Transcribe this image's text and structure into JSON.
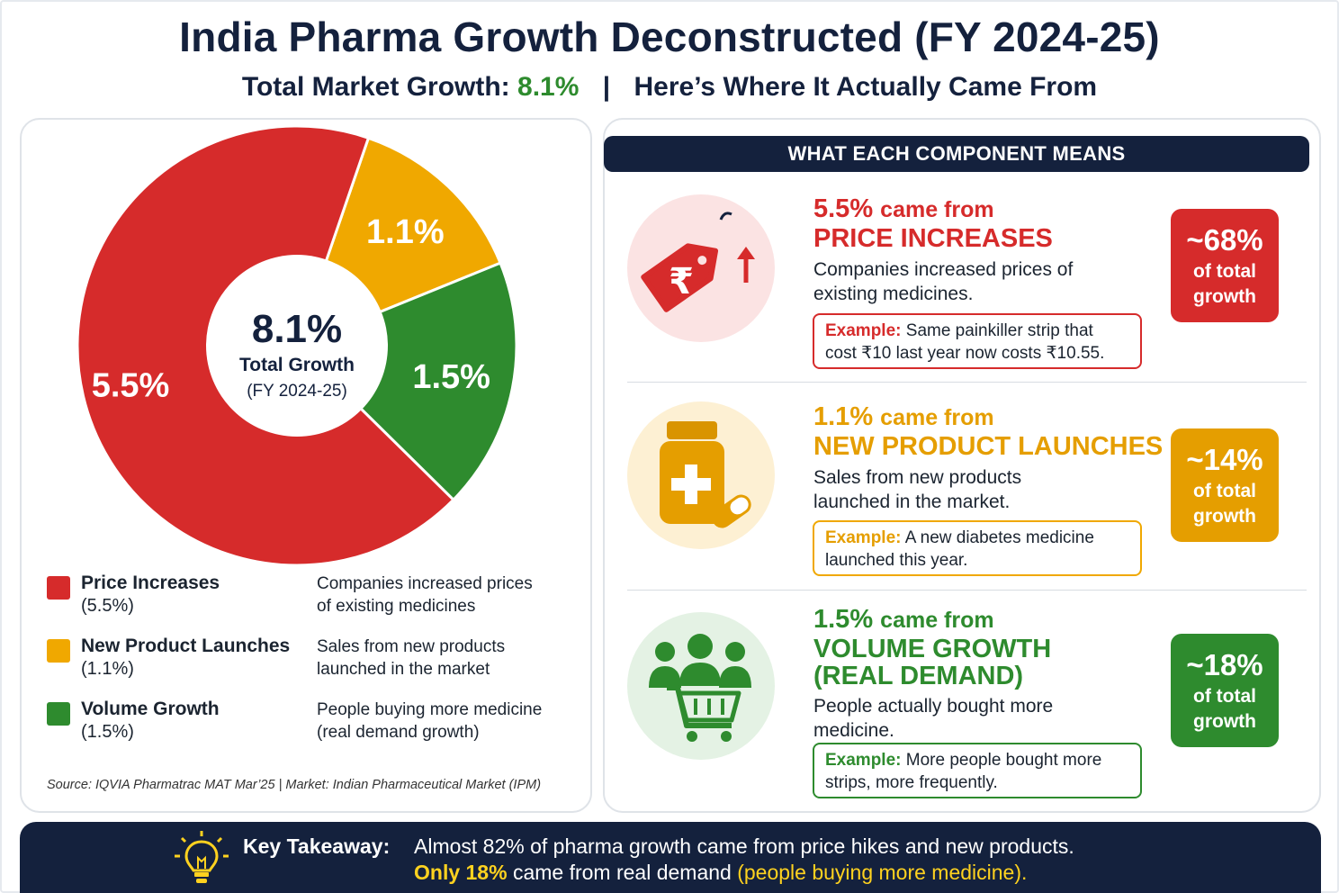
{
  "header": {
    "title": "India Pharma Growth Deconstructed (FY 2024-25)",
    "subtitle_prefix": "Total Market Growth:",
    "subtitle_value": "8.1%",
    "subtitle_separator": "|",
    "subtitle_suffix": "Here’s Where It Actually Came From"
  },
  "chart_data": {
    "type": "pie",
    "donut": true,
    "categories": [
      "Price Increases",
      "New Product Launches",
      "Volume Growth"
    ],
    "values": [
      5.5,
      1.1,
      1.5
    ],
    "data_labels": [
      "5.5%",
      "1.1%",
      "1.5%"
    ],
    "colors": [
      "#d62b2b",
      "#f0a800",
      "#2e8b2e"
    ],
    "center_value": "8.1%",
    "center_label": "Total Growth",
    "center_sublabel": "(FY 2024-25)",
    "legend_placement": "bottom"
  },
  "legend": [
    {
      "name": "Price Increases",
      "value": "(5.5%)",
      "desc1": "Companies increased prices",
      "desc2": "of existing medicines",
      "color": "#d62b2b"
    },
    {
      "name": "New Product Launches",
      "value": "(1.1%)",
      "desc1": "Sales from new products",
      "desc2": "launched in the market",
      "color": "#f0a800"
    },
    {
      "name": "Volume Growth",
      "value": "(1.5%)",
      "desc1": "People buying more medicine",
      "desc2": "(real demand growth)",
      "color": "#2e8b2e"
    }
  ],
  "source": "Source: IQVIA Pharmatrac MAT Mar’25 | Market: Indian Pharmaceutical Market (IPM)",
  "components_header": "WHAT EACH COMPONENT MEANS",
  "components": [
    {
      "icon": "price-tag-rupee-icon",
      "pct": "5.5%",
      "came_from": "came from",
      "title": "PRICE INCREASES",
      "desc1": "Companies increased prices of",
      "desc2": "existing medicines.",
      "example_label": "Example:",
      "example1": "Same painkiller strip that",
      "example2": "cost ₹10 last year now costs ₹10.55.",
      "share": "~68%",
      "share_l1": "of total",
      "share_l2": "growth",
      "color": "#d62b2b"
    },
    {
      "icon": "medicine-bottle-icon",
      "pct": "1.1%",
      "came_from": "came from",
      "title": "NEW PRODUCT LAUNCHES",
      "desc1": "Sales from new products",
      "desc2": "launched in the market.",
      "example_label": "Example:",
      "example1": "A new diabetes medicine",
      "example2": "launched this year.",
      "share": "~14%",
      "share_l1": "of total",
      "share_l2": "growth",
      "color": "#e59e00"
    },
    {
      "icon": "people-shopping-cart-icon",
      "pct": "1.5%",
      "came_from": "came from",
      "title1": "VOLUME GROWTH",
      "title2": "(REAL DEMAND)",
      "desc1": "People actually bought more",
      "desc2": "medicine.",
      "example_label": "Example:",
      "example1": "More people bought more",
      "example2": "strips, more frequently.",
      "share": "~18%",
      "share_l1": "of total",
      "share_l2": "growth",
      "color": "#2e8b2e"
    }
  ],
  "takeaway": {
    "label": "Key Takeaway:",
    "line1": "Almost 82% of pharma growth came from price hikes and new products.",
    "line2_highlight": "Only 18%",
    "line2_mid": "came from real demand",
    "line2_paren": "(people buying more medicine)."
  }
}
